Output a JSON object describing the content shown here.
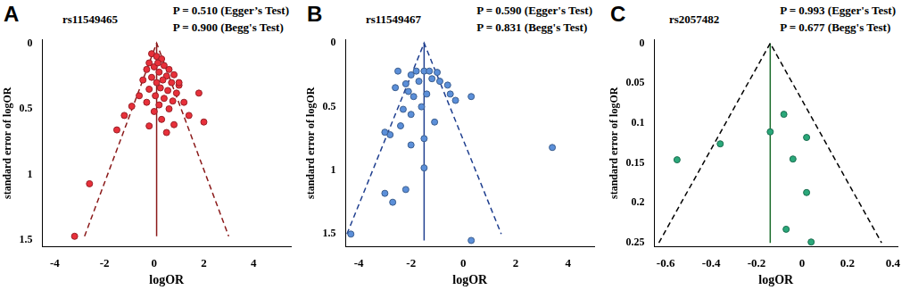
{
  "chart_data": [
    {
      "type": "scatter",
      "panel": "A",
      "label": "rs11549465",
      "annotations": [
        "P = 0.510 (Egger’s Test)",
        "P = 0.900 (Begg's Test)"
      ],
      "x_label": "logOR",
      "y_label": "standard error of logOR",
      "xlim": [
        -4.5,
        5.5
      ],
      "xticks": [
        -4,
        -2,
        0,
        2,
        4
      ],
      "ylim": [
        1.55,
        -0.03
      ],
      "yticks": [
        0,
        0.5,
        1,
        1.5
      ],
      "series": [
        {
          "type": "scatter",
          "marker": "circle",
          "color": "#e8303a",
          "x": [
            -0.1,
            0.1,
            0.3,
            -0.2,
            0.4,
            0.0,
            0.6,
            -0.3,
            0.2,
            0.8,
            0.5,
            -0.1,
            0.35,
            0.7,
            -0.45,
            0.1,
            1.0,
            0.25,
            -0.2,
            0.55,
            0.9,
            1.8,
            0.05,
            -0.6,
            0.4,
            0.75,
            -0.3,
            1.2,
            0.2,
            -0.9,
            0.6,
            0.0,
            1.4,
            -1.2,
            0.3,
            2.0,
            0.8,
            -0.2,
            -1.5,
            0.5,
            1.0,
            0.15,
            -2.6,
            -3.2
          ],
          "y": [
            0.08,
            0.1,
            0.12,
            0.15,
            0.17,
            0.18,
            0.2,
            0.2,
            0.22,
            0.24,
            0.25,
            0.26,
            0.28,
            0.3,
            0.28,
            0.3,
            0.32,
            0.34,
            0.35,
            0.36,
            0.38,
            0.38,
            0.4,
            0.4,
            0.42,
            0.44,
            0.45,
            0.45,
            0.47,
            0.48,
            0.5,
            0.52,
            0.55,
            0.55,
            0.58,
            0.6,
            0.62,
            0.63,
            0.66,
            0.68,
            0.3,
            0.15,
            1.07,
            1.47
          ]
        },
        {
          "type": "line",
          "line_style": "dashed",
          "color": "#8b1a1a",
          "x": [
            -2.8,
            0.1,
            3.0
          ],
          "y": [
            1.47,
            0,
            1.47
          ]
        },
        {
          "type": "line",
          "line_style": "solid",
          "color": "#8b1a1a",
          "x": [
            0.1,
            0.1
          ],
          "y": [
            0,
            1.47
          ]
        }
      ]
    },
    {
      "type": "scatter",
      "panel": "B",
      "label": "rs11549467",
      "annotations": [
        "P = 0.590 (Egger's Test)",
        "P = 0.831 (Begg's Test)"
      ],
      "x_label": "logOR",
      "y_label": "standard error of logOR",
      "xlim": [
        -4.5,
        5
      ],
      "xticks": [
        -4,
        -2,
        0,
        2,
        4
      ],
      "ylim": [
        1.6,
        -0.03
      ],
      "yticks": [
        0,
        0.5,
        1,
        1.5
      ],
      "series": [
        {
          "type": "scatter",
          "marker": "circle",
          "color": "#5b8fd9",
          "x": [
            -1.8,
            -1.5,
            -1.3,
            -1.0,
            -2.0,
            -2.5,
            -1.2,
            -1.7,
            -2.2,
            -0.9,
            -0.6,
            -2.1,
            -1.9,
            -2.6,
            -1.4,
            -0.5,
            -0.3,
            -1.6,
            -2.3,
            -2.0,
            0.3,
            -2.4,
            -1.1,
            -2.8,
            -1.5,
            -3.0,
            -2.0,
            3.4,
            -1.5,
            -2.2,
            -3.0,
            -2.7,
            -4.3,
            0.3
          ],
          "y": [
            0.22,
            0.22,
            0.22,
            0.23,
            0.25,
            0.22,
            0.28,
            0.3,
            0.32,
            0.3,
            0.33,
            0.38,
            0.42,
            0.35,
            0.4,
            0.4,
            0.45,
            0.5,
            0.52,
            0.56,
            0.42,
            0.65,
            0.62,
            0.72,
            0.75,
            0.7,
            0.8,
            0.82,
            0.98,
            1.15,
            1.18,
            1.25,
            1.5,
            1.55
          ]
        },
        {
          "type": "line",
          "line_style": "dashed",
          "color": "#1f3f8f",
          "x": [
            -4.45,
            -1.5,
            1.45
          ],
          "y": [
            1.5,
            0,
            1.5
          ]
        },
        {
          "type": "line",
          "line_style": "solid",
          "color": "#1f3f8f",
          "x": [
            -1.5,
            -1.5
          ],
          "y": [
            0,
            1.55
          ]
        }
      ]
    },
    {
      "type": "scatter",
      "panel": "C",
      "label": "rs2057482",
      "annotations": [
        "P = 0.993 (Egger's Test)",
        "P = 0.677 (Begg's Test)"
      ],
      "x_label": "logOR",
      "y_label": "standard error of logOR",
      "xlim": [
        -0.65,
        0.42
      ],
      "xticks": [
        -0.6,
        -0.4,
        -0.2,
        0,
        0.2,
        0.4
      ],
      "ylim": [
        0.255,
        -0.005
      ],
      "yticks": [
        0,
        0.05,
        0.1,
        0.15,
        0.2,
        0.25
      ],
      "series": [
        {
          "type": "scatter",
          "marker": "circle",
          "color": "#2aa87a",
          "x": [
            -0.55,
            -0.36,
            -0.14,
            -0.08,
            0.02,
            -0.04,
            0.02,
            -0.07,
            0.04
          ],
          "y": [
            0.146,
            0.126,
            0.111,
            0.089,
            0.118,
            0.145,
            0.187,
            0.233,
            0.249
          ]
        },
        {
          "type": "line",
          "line_style": "dashed",
          "color": "#000000",
          "x": [
            -0.63,
            -0.14,
            0.35
          ],
          "y": [
            0.25,
            0,
            0.25
          ]
        },
        {
          "type": "line",
          "line_style": "solid",
          "color": "#1a6b2a",
          "x": [
            -0.14,
            -0.14
          ],
          "y": [
            0,
            0.25
          ]
        }
      ]
    }
  ]
}
